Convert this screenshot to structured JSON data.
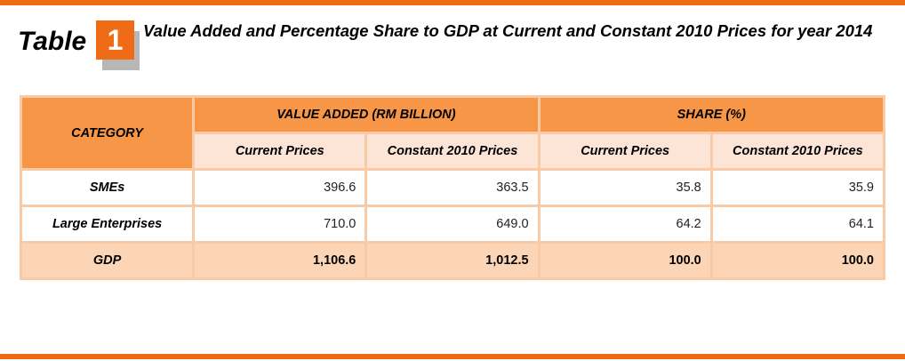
{
  "header": {
    "table_word": "Table",
    "table_number": "1",
    "title": "Value Added and Percentage Share to GDP at Current and Constant 2010 Prices for year 2014"
  },
  "table": {
    "category_header": "CATEGORY",
    "groups": [
      "VALUE ADDED (RM BILLION)",
      "SHARE (%)"
    ],
    "subheaders": [
      "Current Prices",
      "Constant 2010 Prices",
      "Current Prices",
      "Constant 2010 Prices"
    ],
    "rows": [
      {
        "label": "SMEs",
        "values": [
          "396.6",
          "363.5",
          "35.8",
          "35.9"
        ]
      },
      {
        "label": "Large Enterprises",
        "values": [
          "710.0",
          "649.0",
          "64.2",
          "64.1"
        ]
      },
      {
        "label": "GDP",
        "values": [
          "1,106.6",
          "1,012.5",
          "100.0",
          "100.0"
        ]
      }
    ]
  },
  "colors": {
    "accent": "#ef6b16",
    "header": "#f79646",
    "subheader": "#fce4d6",
    "total_row": "#fbd5b5"
  }
}
